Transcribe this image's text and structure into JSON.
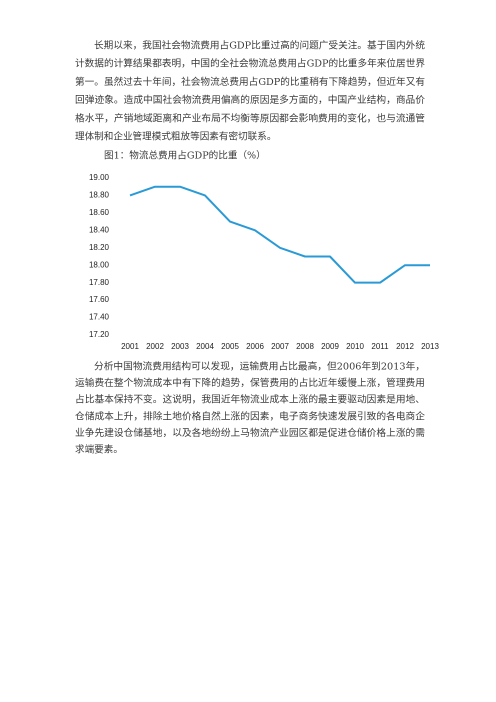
{
  "paragraphs": [
    {
      "lines": [
        "长期以来，我国社会物流费用占GDP比重过高的问题广受关注。基于国内外统",
        "计数据的计算结果都表明，中国的全社会物流总费用占GDP的比重多年来位居世界",
        "第一。虽然过去十年间，社会物流总费用占GDP的比重稍有下降趋势，但近年又有",
        "回弹迹象。造成中国社会物流费用偏高的原因是多方面的，中国产业结构，商品价",
        "格水平，产销地域距离和产业布局不均衡等原因都会影响费用的变化，也与流通管",
        "理体制和企业管理模式粗放等因素有密切联系。"
      ]
    },
    {
      "lines": [
        "分析中国物流费用结构可以发现，运输费用占比最高，但2006年到2013年，",
        "运输费在整个物流成本中有下降的趋势，保管费用的占比近年缓慢上涨，管理费用",
        "占比基本保持不变。这说明，我国近年物流业成本上涨的最主要驱动因素是用地、",
        "仓储成本上升，排除土地价格自然上涨的因素，电子商务快速发展引致的各电商企",
        "业争先建设仓储基地，以及各地纷纷上马物流产业园区都是促进仓储价格上涨的需",
        "求端要素。"
      ]
    }
  ],
  "chart_data": {
    "type": "line",
    "title": "图1：物流总费用占GDP的比重（%）",
    "categories": [
      "2001",
      "2002",
      "2003",
      "2004",
      "2005",
      "2006",
      "2007",
      "2008",
      "2009",
      "2010",
      "2011",
      "2012",
      "2013"
    ],
    "values": [
      18.8,
      18.9,
      18.9,
      18.8,
      18.5,
      18.4,
      18.2,
      18.1,
      18.1,
      17.8,
      17.8,
      18.0,
      18.0
    ],
    "color": "#2a9ad6",
    "ylim": [
      17.2,
      19.0
    ],
    "yticks": [
      {
        "value": 17.2,
        "label": "17.20"
      },
      {
        "value": 17.4,
        "label": "17.40"
      },
      {
        "value": 17.6,
        "label": "17.60"
      },
      {
        "value": 17.8,
        "label": "17.80"
      },
      {
        "value": 18.0,
        "label": "18.00"
      },
      {
        "value": 18.2,
        "label": "18.20"
      },
      {
        "value": 18.4,
        "label": "18.40"
      },
      {
        "value": 18.6,
        "label": "18.60"
      },
      {
        "value": 18.8,
        "label": "18.80"
      },
      {
        "value": 19.0,
        "label": "19.00"
      }
    ],
    "grid": false
  }
}
